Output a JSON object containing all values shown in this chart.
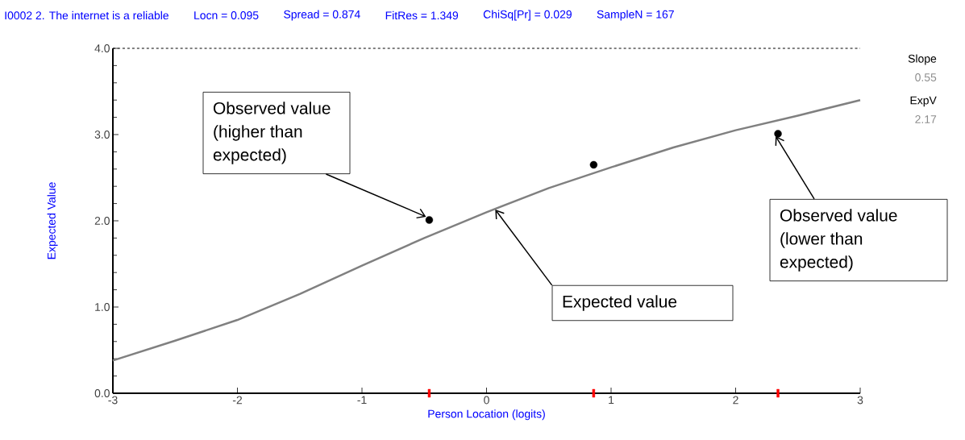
{
  "chart_data": {
    "type": "line",
    "title": "I0002  2. The internet is a reliable",
    "xlabel": "Person Location (logits)",
    "ylabel": "Expected Value",
    "xlim": [
      -3,
      3
    ],
    "ylim": [
      0,
      4
    ],
    "xticks": [
      -3,
      -2,
      -1,
      0,
      1,
      2,
      3
    ],
    "yticks": [
      {
        "value": 0,
        "label": "0.0"
      },
      {
        "value": 1,
        "label": "1.0"
      },
      {
        "value": 2,
        "label": "2.0"
      },
      {
        "value": 3,
        "label": "3.0"
      },
      {
        "value": 4,
        "label": "4.0"
      }
    ],
    "series": [
      {
        "color": "#808080",
        "x": [
          -3,
          -2.5,
          -2,
          -1.5,
          -1,
          -0.5,
          0,
          0.5,
          1,
          1.5,
          2,
          2.5,
          3
        ],
        "values": [
          0.38,
          0.61,
          0.85,
          1.15,
          1.48,
          1.8,
          2.1,
          2.38,
          2.62,
          2.85,
          3.05,
          3.22,
          3.4
        ]
      },
      {
        "type": "scatter",
        "marker": "circle",
        "color": "#000000",
        "x": [
          -0.46,
          0.86,
          2.34
        ],
        "values": [
          2.01,
          2.65,
          3.01
        ]
      },
      {
        "type": "scatter",
        "marker": "square",
        "color": "#ff0000",
        "x": [
          -0.46,
          0.86,
          2.34
        ],
        "values": [
          0,
          0,
          0
        ]
      }
    ],
    "ref_lines": [
      {
        "axis": "y",
        "value": 4,
        "line_style": "dashed",
        "color": "#000000"
      }
    ],
    "annotations": [
      "Locn = 0.095",
      "Spread = 0.874",
      "FitRes = 1.349",
      "ChiSq[Pr] = 0.029",
      "SampleN = 167",
      "Slope",
      "0.55",
      "ExpV",
      "2.17",
      {
        "text": "Observed value (higher than expected)",
        "x": -0.46,
        "y": 2.01
      },
      {
        "text": "Expected value",
        "x": 0.07,
        "y": 2.13
      },
      {
        "text": "Observed value (lower than expected)",
        "x": 2.34,
        "y": 3.01
      }
    ]
  }
}
